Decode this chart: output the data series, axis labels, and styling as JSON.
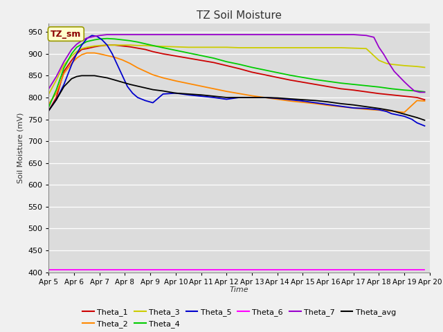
{
  "title": "TZ Soil Moisture",
  "ylabel": "Soil Moisture (mV)",
  "xlabel": "Time",
  "ylim": [
    400,
    970
  ],
  "yticks": [
    400,
    450,
    500,
    550,
    600,
    650,
    700,
    750,
    800,
    850,
    900,
    950
  ],
  "fig_bg_color": "#f0f0f0",
  "plot_bg_color": "#dcdcdc",
  "legend_label": "TZ_sm",
  "x_labels": [
    "Apr 5",
    "Apr 6",
    "Apr 7",
    "Apr 8",
    "Apr 9",
    "Apr 10",
    "Apr 11",
    "Apr 12",
    "Apr 13",
    "Apr 14",
    "Apr 15",
    "Apr 16",
    "Apr 17",
    "Apr 18",
    "Apr 19",
    "Apr 20"
  ],
  "series": {
    "Theta_1": {
      "color": "#cc0000",
      "points": [
        [
          0,
          770
        ],
        [
          0.3,
          800
        ],
        [
          0.6,
          860
        ],
        [
          0.9,
          885
        ],
        [
          1.1,
          900
        ],
        [
          1.3,
          910
        ],
        [
          1.5,
          912
        ],
        [
          1.8,
          916
        ],
        [
          2.0,
          918
        ],
        [
          2.3,
          920
        ],
        [
          2.6,
          920
        ],
        [
          2.9,
          918
        ],
        [
          3.2,
          916
        ],
        [
          3.5,
          913
        ],
        [
          3.8,
          910
        ],
        [
          4.1,
          905
        ],
        [
          4.5,
          900
        ],
        [
          5.0,
          895
        ],
        [
          5.5,
          890
        ],
        [
          6.0,
          885
        ],
        [
          6.5,
          880
        ],
        [
          7.0,
          873
        ],
        [
          7.5,
          866
        ],
        [
          8.0,
          858
        ],
        [
          8.5,
          852
        ],
        [
          9.0,
          846
        ],
        [
          9.5,
          840
        ],
        [
          10.0,
          835
        ],
        [
          10.5,
          830
        ],
        [
          11.0,
          825
        ],
        [
          11.5,
          820
        ],
        [
          12.0,
          817
        ],
        [
          12.5,
          813
        ],
        [
          13.0,
          809
        ],
        [
          13.5,
          806
        ],
        [
          14.0,
          803
        ],
        [
          14.5,
          800
        ],
        [
          14.8,
          795
        ]
      ]
    },
    "Theta_2": {
      "color": "#ff8800",
      "points": [
        [
          0,
          785
        ],
        [
          0.3,
          810
        ],
        [
          0.6,
          855
        ],
        [
          0.9,
          878
        ],
        [
          1.1,
          890
        ],
        [
          1.3,
          898
        ],
        [
          1.5,
          902
        ],
        [
          1.8,
          902
        ],
        [
          2.0,
          900
        ],
        [
          2.3,
          896
        ],
        [
          2.6,
          892
        ],
        [
          2.9,
          886
        ],
        [
          3.2,
          878
        ],
        [
          3.5,
          868
        ],
        [
          3.8,
          860
        ],
        [
          4.1,
          852
        ],
        [
          4.5,
          845
        ],
        [
          5.0,
          838
        ],
        [
          5.5,
          832
        ],
        [
          6.0,
          826
        ],
        [
          6.5,
          820
        ],
        [
          7.0,
          814
        ],
        [
          7.5,
          809
        ],
        [
          8.0,
          804
        ],
        [
          8.5,
          800
        ],
        [
          9.0,
          796
        ],
        [
          9.5,
          792
        ],
        [
          10.0,
          789
        ],
        [
          10.5,
          786
        ],
        [
          11.0,
          782
        ],
        [
          11.5,
          779
        ],
        [
          12.0,
          776
        ],
        [
          12.5,
          773
        ],
        [
          13.0,
          771
        ],
        [
          13.5,
          769
        ],
        [
          14.0,
          766
        ],
        [
          14.5,
          793
        ],
        [
          14.8,
          792
        ]
      ]
    },
    "Theta_3": {
      "color": "#cccc00",
      "points": [
        [
          0,
          808
        ],
        [
          0.3,
          840
        ],
        [
          0.6,
          875
        ],
        [
          0.9,
          895
        ],
        [
          1.1,
          905
        ],
        [
          1.3,
          912
        ],
        [
          1.5,
          915
        ],
        [
          1.8,
          918
        ],
        [
          2.0,
          919
        ],
        [
          2.3,
          920
        ],
        [
          2.6,
          920
        ],
        [
          2.9,
          920
        ],
        [
          3.2,
          920
        ],
        [
          3.5,
          919
        ],
        [
          3.8,
          919
        ],
        [
          4.1,
          918
        ],
        [
          4.5,
          917
        ],
        [
          5.0,
          916
        ],
        [
          5.5,
          915
        ],
        [
          6.0,
          915
        ],
        [
          6.5,
          915
        ],
        [
          7.0,
          915
        ],
        [
          7.5,
          914
        ],
        [
          8.0,
          914
        ],
        [
          8.5,
          914
        ],
        [
          9.0,
          914
        ],
        [
          9.5,
          914
        ],
        [
          10.0,
          914
        ],
        [
          10.5,
          914
        ],
        [
          11.0,
          914
        ],
        [
          11.5,
          914
        ],
        [
          12.0,
          913
        ],
        [
          12.5,
          912
        ],
        [
          13.0,
          885
        ],
        [
          13.3,
          878
        ],
        [
          13.5,
          876
        ],
        [
          14.0,
          873
        ],
        [
          14.5,
          871
        ],
        [
          14.8,
          869
        ]
      ]
    },
    "Theta_4": {
      "color": "#00cc00",
      "points": [
        [
          0,
          778
        ],
        [
          0.3,
          818
        ],
        [
          0.6,
          868
        ],
        [
          0.9,
          900
        ],
        [
          1.1,
          915
        ],
        [
          1.3,
          922
        ],
        [
          1.5,
          928
        ],
        [
          1.8,
          932
        ],
        [
          2.0,
          934
        ],
        [
          2.3,
          935
        ],
        [
          2.6,
          934
        ],
        [
          2.9,
          932
        ],
        [
          3.2,
          930
        ],
        [
          3.5,
          927
        ],
        [
          3.8,
          923
        ],
        [
          4.1,
          919
        ],
        [
          4.5,
          914
        ],
        [
          5.0,
          908
        ],
        [
          5.5,
          902
        ],
        [
          6.0,
          896
        ],
        [
          6.5,
          890
        ],
        [
          7.0,
          882
        ],
        [
          7.5,
          876
        ],
        [
          8.0,
          869
        ],
        [
          8.5,
          863
        ],
        [
          9.0,
          857
        ],
        [
          9.5,
          851
        ],
        [
          10.0,
          846
        ],
        [
          10.5,
          841
        ],
        [
          11.0,
          837
        ],
        [
          11.5,
          833
        ],
        [
          12.0,
          830
        ],
        [
          12.5,
          827
        ],
        [
          13.0,
          824
        ],
        [
          13.5,
          820
        ],
        [
          14.0,
          817
        ],
        [
          14.5,
          815
        ],
        [
          14.8,
          813
        ]
      ]
    },
    "Theta_5": {
      "color": "#0000cc",
      "points": [
        [
          0,
          770
        ],
        [
          0.3,
          795
        ],
        [
          0.6,
          830
        ],
        [
          0.9,
          875
        ],
        [
          1.1,
          900
        ],
        [
          1.3,
          920
        ],
        [
          1.5,
          935
        ],
        [
          1.7,
          942
        ],
        [
          1.9,
          940
        ],
        [
          2.1,
          932
        ],
        [
          2.3,
          920
        ],
        [
          2.5,
          900
        ],
        [
          2.7,
          875
        ],
        [
          2.9,
          850
        ],
        [
          3.1,
          825
        ],
        [
          3.3,
          810
        ],
        [
          3.5,
          800
        ],
        [
          3.8,
          793
        ],
        [
          4.1,
          788
        ],
        [
          4.5,
          808
        ],
        [
          5.0,
          810
        ],
        [
          5.5,
          806
        ],
        [
          6.0,
          803
        ],
        [
          6.5,
          800
        ],
        [
          7.0,
          796
        ],
        [
          7.5,
          800
        ],
        [
          8.0,
          800
        ],
        [
          8.5,
          800
        ],
        [
          9.0,
          798
        ],
        [
          9.5,
          795
        ],
        [
          10.0,
          792
        ],
        [
          10.5,
          788
        ],
        [
          11.0,
          784
        ],
        [
          11.5,
          780
        ],
        [
          12.0,
          776
        ],
        [
          12.5,
          775
        ],
        [
          13.0,
          772
        ],
        [
          13.3,
          768
        ],
        [
          13.5,
          763
        ],
        [
          14.0,
          757
        ],
        [
          14.3,
          750
        ],
        [
          14.5,
          742
        ],
        [
          14.8,
          735
        ]
      ]
    },
    "Theta_6": {
      "color": "#ff00ff",
      "points": [
        [
          0,
          405
        ],
        [
          14.8,
          405
        ]
      ]
    },
    "Theta_7": {
      "color": "#9900cc",
      "points": [
        [
          0,
          820
        ],
        [
          0.3,
          848
        ],
        [
          0.6,
          882
        ],
        [
          0.9,
          910
        ],
        [
          1.1,
          922
        ],
        [
          1.3,
          930
        ],
        [
          1.5,
          936
        ],
        [
          1.8,
          940
        ],
        [
          2.0,
          942
        ],
        [
          2.3,
          944
        ],
        [
          2.6,
          944
        ],
        [
          2.9,
          944
        ],
        [
          3.2,
          944
        ],
        [
          3.5,
          944
        ],
        [
          3.8,
          944
        ],
        [
          4.1,
          944
        ],
        [
          4.5,
          944
        ],
        [
          5.0,
          944
        ],
        [
          5.5,
          944
        ],
        [
          6.0,
          944
        ],
        [
          6.5,
          944
        ],
        [
          7.0,
          944
        ],
        [
          7.5,
          944
        ],
        [
          8.0,
          944
        ],
        [
          8.5,
          944
        ],
        [
          9.0,
          944
        ],
        [
          9.5,
          944
        ],
        [
          10.0,
          944
        ],
        [
          10.5,
          944
        ],
        [
          11.0,
          944
        ],
        [
          11.5,
          944
        ],
        [
          12.0,
          944
        ],
        [
          12.5,
          942
        ],
        [
          12.8,
          938
        ],
        [
          13.0,
          915
        ],
        [
          13.2,
          898
        ],
        [
          13.4,
          878
        ],
        [
          13.6,
          860
        ],
        [
          13.8,
          848
        ],
        [
          14.0,
          836
        ],
        [
          14.2,
          825
        ],
        [
          14.4,
          815
        ],
        [
          14.6,
          812
        ],
        [
          14.8,
          812
        ]
      ]
    },
    "Theta_avg": {
      "color": "#000000",
      "points": [
        [
          0,
          770
        ],
        [
          0.3,
          795
        ],
        [
          0.6,
          825
        ],
        [
          0.9,
          843
        ],
        [
          1.1,
          848
        ],
        [
          1.3,
          850
        ],
        [
          1.5,
          850
        ],
        [
          1.8,
          850
        ],
        [
          2.0,
          848
        ],
        [
          2.3,
          845
        ],
        [
          2.6,
          840
        ],
        [
          2.9,
          835
        ],
        [
          3.2,
          830
        ],
        [
          3.5,
          826
        ],
        [
          3.8,
          822
        ],
        [
          4.1,
          818
        ],
        [
          4.5,
          815
        ],
        [
          5.0,
          810
        ],
        [
          5.5,
          808
        ],
        [
          6.0,
          806
        ],
        [
          6.5,
          803
        ],
        [
          7.0,
          800
        ],
        [
          7.5,
          800
        ],
        [
          8.0,
          800
        ],
        [
          8.5,
          800
        ],
        [
          9.0,
          799
        ],
        [
          9.5,
          797
        ],
        [
          10.0,
          795
        ],
        [
          10.5,
          793
        ],
        [
          11.0,
          790
        ],
        [
          11.5,
          786
        ],
        [
          12.0,
          783
        ],
        [
          12.5,
          779
        ],
        [
          13.0,
          775
        ],
        [
          13.5,
          770
        ],
        [
          14.0,
          762
        ],
        [
          14.5,
          754
        ],
        [
          14.8,
          748
        ]
      ]
    }
  },
  "legend_row1": [
    "Theta_1",
    "Theta_2",
    "Theta_3",
    "Theta_4",
    "Theta_5",
    "Theta_6"
  ],
  "legend_row2": [
    "Theta_7",
    "Theta_avg"
  ]
}
